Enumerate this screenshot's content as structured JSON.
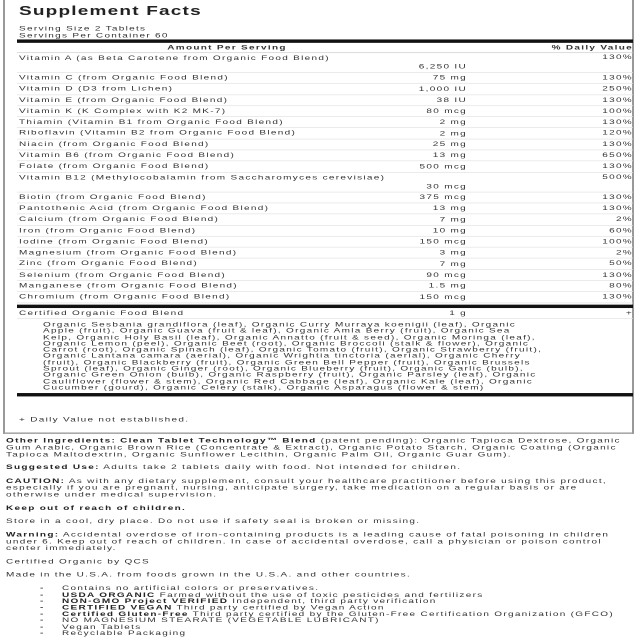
{
  "title": "Supplement Facts",
  "serving_size": "Serving Size 2 Tablets",
  "servings_per_container": "Servings Per Container 60",
  "table": {
    "header_amount": "Amount Per Serving",
    "header_dv": "% Daily Value",
    "rows": [
      {
        "name": "Vitamin A (as Beta Carotene from Organic Food Blend)",
        "amount": "6,250 IU",
        "dv": "130%"
      },
      {
        "name": "Vitamin C (from Organic Food Blend)",
        "amount": "75 mg",
        "dv": "130%"
      },
      {
        "name": "Vitamin D (D3 from Lichen)",
        "amount": "1,000 IU",
        "dv": "250%"
      },
      {
        "name": "Vitamin E (from Organic Food Blend)",
        "amount": "38 IU",
        "dv": "130%"
      },
      {
        "name": "Vitamin K (K Complex with K2 MK-7)",
        "amount": "80 mcg",
        "dv": "100%"
      },
      {
        "name": "Thiamin (Vitamin B1 from Organic Food Blend)",
        "amount": "2 mg",
        "dv": "130%"
      },
      {
        "name": "Riboflavin (Vitamin B2 from Organic Food Blend)",
        "amount": "2 mg",
        "dv": "120%"
      },
      {
        "name": "Niacin (from Organic Food Blend)",
        "amount": "25 mg",
        "dv": "130%"
      },
      {
        "name": "Vitamin B6 (from Organic Food Blend)",
        "amount": "13 mg",
        "dv": "650%"
      },
      {
        "name": "Folate (from Organic Food Blend)",
        "amount": "500 mcg",
        "dv": "130%"
      },
      {
        "name": "Vitamin B12 (Methylocobalamin from Saccharomyces cerevisiae)",
        "amount": "30 mcg",
        "dv": "500%"
      },
      {
        "name": "Biotin (from Organic Food Blend)",
        "amount": "375 mcg",
        "dv": "130%"
      },
      {
        "name": "Pantothenic Acid (from Organic Food Blend)",
        "amount": "13 mg",
        "dv": "130%"
      },
      {
        "name": "Calcium (from Organic Food Blend)",
        "amount": "7 mg",
        "dv": "2%"
      },
      {
        "name": "Iron (from Organic Food Blend)",
        "amount": "10 mg",
        "dv": "60%"
      },
      {
        "name": "Iodine (from Organic Food Blend)",
        "amount": "150 mcg",
        "dv": "100%"
      },
      {
        "name": "Magnesium (from Organic Food Blend)",
        "amount": "3 mg",
        "dv": "2%"
      },
      {
        "name": "Zinc (from Organic Food Blend)",
        "amount": "7 mg",
        "dv": "50%"
      },
      {
        "name": "Selenium (from Organic Food Blend)",
        "amount": "90 mcg",
        "dv": "130%"
      },
      {
        "name": "Manganese (from Organic Food Blend)",
        "amount": "1.5 mg",
        "dv": "80%"
      },
      {
        "name": "Chromium (from Organic Food Blend)",
        "amount": "150 mcg",
        "dv": "130%"
      }
    ],
    "blend": {
      "name": "Certified Organic Food Blend",
      "amount": "1 g",
      "dv": "+",
      "ingredients": "Organic Sesbania grandiflora (leaf), Organic Curry Murraya koenigii (leaf), Organic Apple (fruit), Organic Guava (fruit & leaf), Organic Amla Berry (fruit), Organic Sea Kelp, Organic Holy Basil (leaf), Organic Annatto (fruit & seed), Organic Moringa (leaf), Organic Lemon (peel), Organic Beet (root), Organic Broccoli (stalk & flower), Organic Carrot (root), Organic Spinach (leaf), Organic Tomato (fruit), Organic Strawberry (fruit), Organic Lantana camara (aerial), Organic Wrightia tinctoria (aerial), Organic Cherry (fruit), Organic Blackberry (fruit), Organic Green Bell Pepper (fruit), Organic Brussels Sprout (leaf), Organic Ginger (root), Organic Blueberry (fruit), Organic Garlic (bulb), Organic Green Onion (bulb), Organic Raspberry (fruit), Organic Parsley (leaf), Organic Cauliflower (flower & stem), Organic Red Cabbage (leaf), Organic Kale (leaf), Organic Cucumber (gourd), Organic Celery (stalk), Organic Asparagus (flower & stem)"
    },
    "footnote": "+ Daily Value not established."
  },
  "other_ingredients": {
    "label": "Other Ingredients: Clean Tablet Technology™ Blend",
    "text": " (patent pending): Organic Tapioca Dextrose, Organic Gum Arabic, Organic Brown Rice (Concentrate & Extract), Organic Potato Starch, Organic Coating (Organic Tapioca Maltodextrin, Organic Sunflower Lecithin, Organic Palm Oil, Organic Guar Gum)."
  },
  "suggested_use": {
    "label": "Suggested Use:",
    "text": " Adults take 2 tablets daily with food. Not intended for children."
  },
  "caution": {
    "label": "CAUTION:",
    "text": " As with any dietary supplement, consult your healthcare practitioner before using this product, especially if you are pregnant, nursing, anticipate surgery, take medication on a regular basis or are otherwise under medical supervision."
  },
  "keep_out": "Keep out of reach of children.",
  "storage": "Store in a cool, dry place. Do not use if safety seal is broken or missing.",
  "warning": {
    "label": "Warning:",
    "text": " Accidental overdose of iron-containing products is a leading cause of fatal poisoning in children under 6. Keep out of reach of children. In case of accidental overdose, call a physician or poison control center immediately."
  },
  "certified": "Certified Organic by QCS",
  "made_in": "Made in the U.S.A. from foods grown in the U.S.A. and other countries.",
  "bullets": [
    {
      "bold": "",
      "text": "Contains no artificial colors or preservatives."
    },
    {
      "bold": "USDA ORGANIC",
      "text": " Farmed without the use of toxic pesticides and fertilizers"
    },
    {
      "bold": "NON-GMO Project VERIFIED",
      "text": " Independent, third party verification"
    },
    {
      "bold": "CERTIFIED VEGAN",
      "text": " Third party certified by Vegan Action"
    },
    {
      "bold": "Certified Gluten-Free",
      "text": " Third party certified by the Gluten-Free Certification Organization (GFCO)"
    },
    {
      "bold": "",
      "text": "NO MAGNESIUM STEARATE (VEGETABLE LUBRICANT)"
    },
    {
      "bold": "",
      "text": "Vegan Tablets"
    },
    {
      "bold": "",
      "text": "Recyclable Packaging"
    }
  ]
}
